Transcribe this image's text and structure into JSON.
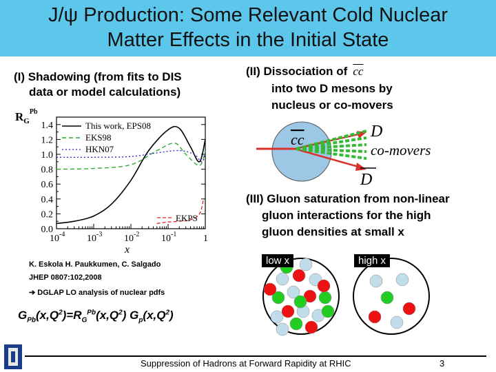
{
  "title": {
    "line1": "J/ψ Production: Some Relevant Cold Nuclear",
    "line2": "Matter Effects in the Initial State"
  },
  "section1": {
    "heading_line1": "(I) Shadowing (from fits to DIS",
    "heading_line2": "data or model calculations)"
  },
  "section2": {
    "heading_prefix": "(II)  Dissociation of",
    "heading_symbol": "cc",
    "heading_line2": "into two D mesons by",
    "heading_line3": "nucleus or co-movers",
    "diagram": {
      "pair_label": "cc",
      "d_label": "D",
      "comovers_label": "co-movers",
      "dbar_label": "D"
    }
  },
  "section3": {
    "heading_line1": "(III) Gluon saturation from non-linear",
    "heading_line2": "gluon interactions for the high",
    "heading_line3": "gluon densities at small x",
    "low_x_label": "low x",
    "high_x_label": "high x"
  },
  "chart": {
    "ylabel_main": "R",
    "ylabel_sub": "G",
    "ylabel_sup": "Pb",
    "xlabel": "x",
    "ytick_labels": [
      "0.0",
      "0.2",
      "0.4",
      "0.6",
      "0.8",
      "1.0",
      "1.2",
      "1.4"
    ],
    "xtick_bases": [
      "10",
      "10",
      "10",
      "10",
      "1"
    ],
    "xtick_exps": [
      "-4",
      "-3",
      "-2",
      "-1",
      ""
    ],
    "legend": [
      "This work, EPS08",
      "EKS98",
      "HKN07",
      "EKPS"
    ]
  },
  "chart_data": {
    "type": "line",
    "xlabel": "x",
    "ylabel": "R_G^Pb",
    "xscale": "log",
    "xlim": [
      0.0001,
      1
    ],
    "ylim": [
      0.0,
      1.5
    ],
    "series": [
      {
        "name": "This work, EPS08",
        "x": [
          0.0001,
          0.0003,
          0.001,
          0.003,
          0.01,
          0.03,
          0.1,
          0.2,
          0.4,
          0.7,
          1
        ],
        "y": [
          0.07,
          0.1,
          0.17,
          0.33,
          0.65,
          1.05,
          1.33,
          1.35,
          1.1,
          0.9,
          1.2
        ]
      },
      {
        "name": "EKS98",
        "x": [
          0.0001,
          0.001,
          0.01,
          0.05,
          0.15,
          0.3,
          0.7,
          1
        ],
        "y": [
          0.8,
          0.81,
          0.86,
          1.05,
          1.15,
          1.0,
          0.85,
          1.05
        ]
      },
      {
        "name": "HKN07",
        "x": [
          0.0001,
          0.001,
          0.01,
          0.05,
          0.2,
          0.5,
          0.8,
          1
        ],
        "y": [
          0.96,
          0.96,
          0.97,
          1.02,
          1.05,
          1.0,
          0.9,
          1.0
        ]
      },
      {
        "name": "EKPS",
        "x": [
          0.05,
          0.1,
          0.2,
          0.4,
          0.7,
          0.9
        ],
        "y": [
          0.07,
          0.09,
          0.1,
          0.12,
          0.2,
          0.4
        ]
      }
    ]
  },
  "citation": {
    "line1": "K. Eskola H. Paukkumen, C. Salgado",
    "line2": "JHEP 0807:102,2008",
    "line3": "DGLAP LO analysis of nuclear pdfs"
  },
  "formula": {
    "g": "G",
    "g_sub": "Pb",
    "mid1": "(x,Q",
    "sq": "2",
    "mid2": ")=R",
    "r_sub": "G",
    "r_sup": "Pb",
    "mid3": "(x,Q",
    "mid4": ") G",
    "p_sub": "p",
    "mid5": "(x,Q",
    "end": ")"
  },
  "footer": {
    "text": "Suppression of Hadrons at Forward Rapidity at RHIC",
    "page": "3"
  },
  "colors": {
    "title_bg": "#5cc7ea",
    "nucleus": "#9cc8e6",
    "dissociation_arrow": "#d9312a",
    "comover_green": "#33bb33",
    "gluon_red": "#ee1111",
    "gluon_green": "#22cc22",
    "gluon_light": "#c0dde9"
  }
}
